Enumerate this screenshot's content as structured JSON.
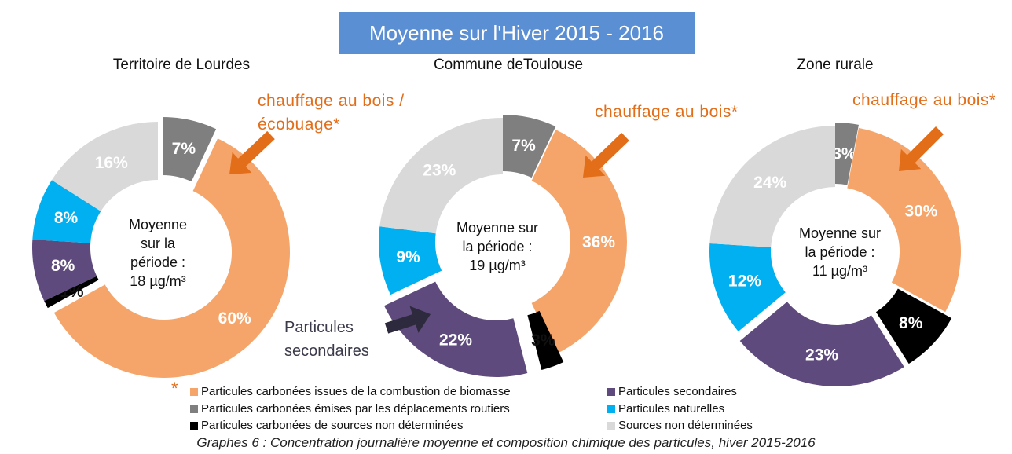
{
  "banner_title": "Moyenne sur l'Hiver 2015 - 2016",
  "caption": "Graphes 6 : Concentration journalière moyenne et composition chimique des particules, hiver 2015-2016",
  "legend": [
    {
      "label": "Particules carbonées issues de la combustion de biomasse",
      "color": "#f6a56a"
    },
    {
      "label": "Particules carbonées émises par les déplacements routiers",
      "color": "#7f7f7f"
    },
    {
      "label": "Particules carbonées de sources non déterminées",
      "color": "#000000"
    },
    {
      "label": "Particules secondaires",
      "color": "#5e4a7c"
    },
    {
      "label": "Particules naturelles",
      "color": "#00b0f0"
    },
    {
      "label": "Sources non déterminées",
      "color": "#d9d9d9"
    }
  ],
  "legend_star": "*",
  "annotations": {
    "lourdes_bois": "chauffage au bois /\nécobuage*",
    "toulouse_bois": "chauffage au bois*",
    "rural_bois": "chauffage au bois*",
    "secondaires": "Particules\nsecondaires"
  },
  "chart_data": [
    {
      "type": "pie",
      "title": "Territoire de Lourdes",
      "center_label": [
        "Moyenne",
        "sur la",
        "période :",
        "18 µg/m³"
      ],
      "categories": [
        "Particules carbonées issues de la combustion de biomasse",
        "Particules carbonées de sources non déterminées",
        "Particules secondaires",
        "Particules naturelles",
        "Sources non déterminées",
        "Particules carbonées émises par les déplacements routiers"
      ],
      "values": [
        60,
        1,
        8,
        8,
        16,
        7
      ],
      "labels": [
        "60%",
        "1%",
        "8%",
        "8%",
        "16%",
        "7%"
      ],
      "colors": [
        "#f6a56a",
        "#000000",
        "#5e4a7c",
        "#00b0f0",
        "#d9d9d9",
        "#7f7f7f"
      ],
      "exploded": [
        "Particules carbonées issues de la combustion de biomasse",
        "Particules carbonées émises par les déplacements routiers"
      ]
    },
    {
      "type": "pie",
      "title": "Commune deToulouse",
      "center_label": [
        "Moyenne sur",
        "la période :",
        "19 µg/m³"
      ],
      "categories": [
        "Particules carbonées issues de la combustion de biomasse",
        "Particules carbonées de sources non déterminées",
        "Particules secondaires",
        "Particules naturelles",
        "Sources non déterminées",
        "Particules carbonées émises par les déplacements routiers"
      ],
      "values": [
        36,
        3,
        22,
        9,
        23,
        7
      ],
      "labels": [
        "36%",
        "3%",
        "22%",
        "9%",
        "23%",
        "7%"
      ],
      "colors": [
        "#f6a56a",
        "#000000",
        "#5e4a7c",
        "#00b0f0",
        "#d9d9d9",
        "#7f7f7f"
      ],
      "exploded": [
        "Particules carbonées émises par les déplacements routiers",
        "Particules secondaires",
        "Particules carbonées de sources non déterminées"
      ]
    },
    {
      "type": "pie",
      "title": "Zone rurale",
      "center_label": [
        "Moyenne sur",
        "la période :",
        "11 µg/m³"
      ],
      "categories": [
        "Particules carbonées issues de la combustion de biomasse",
        "Particules carbonées de sources non déterminées",
        "Particules secondaires",
        "Particules naturelles",
        "Sources non déterminées",
        "Particules carbonées émises par les déplacements routiers"
      ],
      "values": [
        30,
        8,
        23,
        12,
        24,
        3
      ],
      "labels": [
        "30%",
        "8%",
        "23%",
        "12%",
        "24%",
        "3%"
      ],
      "colors": [
        "#f6a56a",
        "#000000",
        "#5e4a7c",
        "#00b0f0",
        "#d9d9d9",
        "#7f7f7f"
      ],
      "exploded": [
        "Particules carbonées émises par les déplacements routiers",
        "Particules carbonées de sources non déterminées",
        "Particules secondaires"
      ]
    }
  ]
}
